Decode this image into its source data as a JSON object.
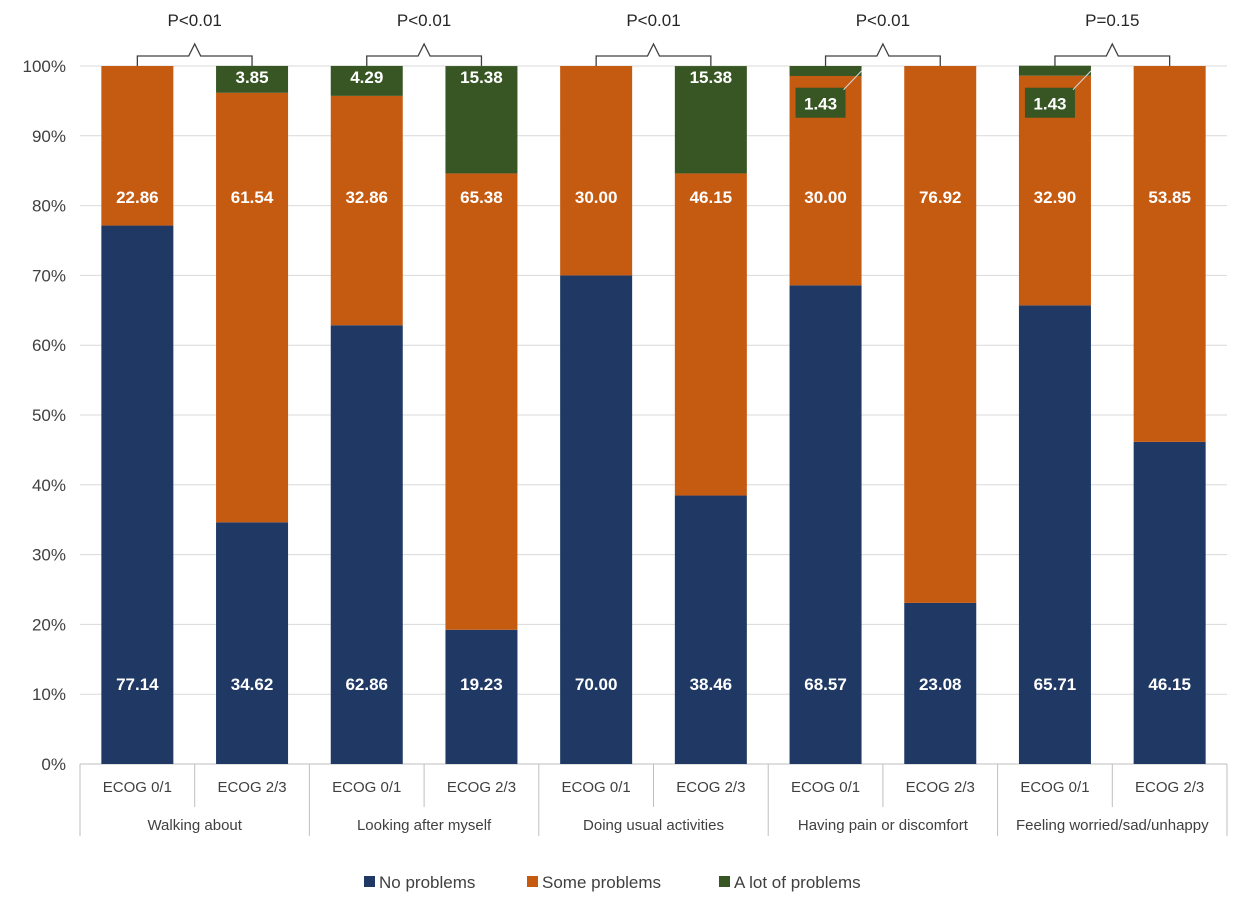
{
  "chart_data": {
    "type": "bar",
    "stacked": true,
    "percent": true,
    "ylim": [
      0,
      100
    ],
    "yticks": [
      "0%",
      "10%",
      "20%",
      "30%",
      "40%",
      "50%",
      "60%",
      "70%",
      "80%",
      "90%",
      "100%"
    ],
    "groups": [
      {
        "name": "Walking about",
        "p_value": "P<0.01",
        "bar_labels": [
          "ECOG 0/1",
          "ECOG 2/3"
        ]
      },
      {
        "name": "Looking after myself",
        "p_value": "P<0.01",
        "bar_labels": [
          "ECOG 0/1",
          "ECOG 2/3"
        ]
      },
      {
        "name": "Doing usual activities",
        "p_value": "P<0.01",
        "bar_labels": [
          "ECOG 0/1",
          "ECOG 2/3"
        ]
      },
      {
        "name": "Having pain or discomfort",
        "p_value": "P<0.01",
        "bar_labels": [
          "ECOG 0/1",
          "ECOG 2/3"
        ]
      },
      {
        "name": "Feeling worried/sad/unhappy",
        "p_value": "P=0.15",
        "bar_labels": [
          "ECOG 0/1",
          "ECOG 2/3"
        ]
      }
    ],
    "series": [
      {
        "name": "No problems",
        "color": "#1f3864",
        "values": [
          77.14,
          34.62,
          62.86,
          19.23,
          70.0,
          38.46,
          68.57,
          23.08,
          65.71,
          46.15
        ],
        "labels": [
          "77.14",
          "34.62",
          "62.86",
          "19.23",
          "70.00",
          "38.46",
          "68.57",
          "23.08",
          "65.71",
          "46.15"
        ]
      },
      {
        "name": "Some problems",
        "color": "#c55a11",
        "values": [
          22.86,
          61.54,
          32.86,
          65.38,
          30.0,
          46.15,
          30.0,
          76.92,
          32.9,
          53.85
        ],
        "labels": [
          "22.86",
          "61.54",
          "32.86",
          "65.38",
          "30.00",
          "46.15",
          "30.00",
          "76.92",
          "32.90",
          "53.85"
        ]
      },
      {
        "name": "A lot of problems",
        "color": "#375623",
        "values": [
          0,
          3.85,
          4.29,
          15.38,
          0,
          15.38,
          1.43,
          0,
          1.43,
          0
        ],
        "labels": [
          "",
          "3.85",
          "4.29",
          "15.38",
          "",
          "15.38",
          "1.43",
          "",
          "1.43",
          ""
        ]
      }
    ],
    "legend": [
      "No problems",
      "Some problems",
      "A lot of problems"
    ],
    "legend_position": "bottom"
  }
}
